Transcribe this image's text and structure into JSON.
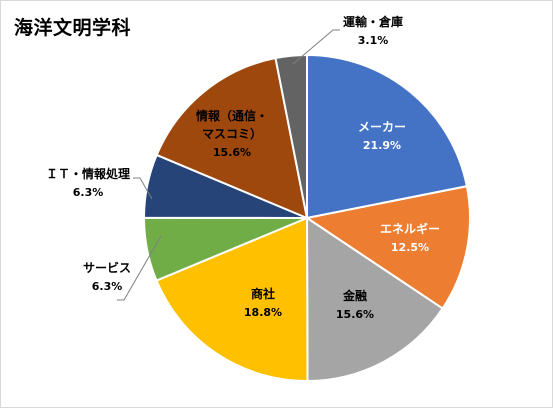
{
  "chart_data": {
    "type": "pie",
    "title": "海洋文明学科",
    "slices": [
      {
        "label": "メーカー",
        "value": 21.9,
        "value_text": "21.9%",
        "color": "#4472C4"
      },
      {
        "label": "エネルギー",
        "value": 12.5,
        "value_text": "12.5%",
        "color": "#ED7D31"
      },
      {
        "label": "金融",
        "value": 15.6,
        "value_text": "15.6%",
        "color": "#A5A5A5"
      },
      {
        "label": "商社",
        "value": 18.8,
        "value_text": "18.8%",
        "color": "#FFC000"
      },
      {
        "label": "サービス",
        "value": 6.3,
        "value_text": "6.3%",
        "color": "#70AD47"
      },
      {
        "label": "ＩＴ・情報処理",
        "value": 6.3,
        "value_text": "6.3%",
        "color": "#264478"
      },
      {
        "label": "情報（通信・マスコミ）",
        "label_lines": [
          "情報（通信・",
          "マスコミ）"
        ],
        "value": 15.6,
        "value_text": "15.6%",
        "color": "#9E480E"
      },
      {
        "label": "運輸・倉庫",
        "value": 3.1,
        "value_text": "3.1%",
        "color": "#636363"
      }
    ],
    "legend": "none",
    "data_labels": "category and percent"
  }
}
